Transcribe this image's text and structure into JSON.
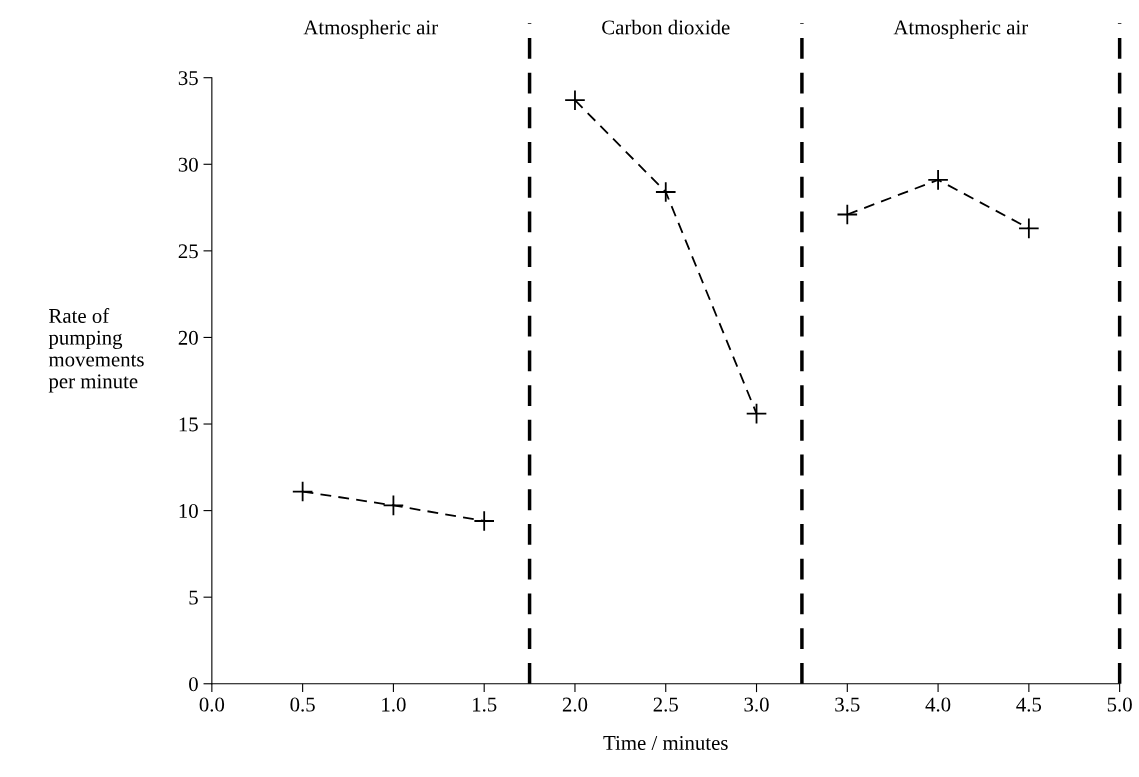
{
  "chart_data": {
    "type": "line",
    "xlabel": "Time / minutes",
    "ylabel": "Rate of\npumping\nmovements\nper minute",
    "series": [
      {
        "x": [
          0.5,
          1.0,
          1.5
        ],
        "values": [
          11.1,
          10.3,
          9.4
        ],
        "color": "#000000"
      },
      {
        "x": [
          2.0,
          2.5,
          3.0
        ],
        "values": [
          33.7,
          28.4,
          15.6
        ],
        "color": "#000000"
      },
      {
        "x": [
          3.5,
          4.0,
          4.5
        ],
        "values": [
          27.1,
          29.1,
          26.3
        ],
        "color": "#000000"
      }
    ],
    "xlim": [
      0,
      5
    ],
    "xticks": [
      {
        "value": 0,
        "label": "0.0"
      },
      {
        "value": 0.5,
        "label": "0.5"
      },
      {
        "value": 1,
        "label": "1.0"
      },
      {
        "value": 1.5,
        "label": "1.5"
      },
      {
        "value": 2,
        "label": "2.0"
      },
      {
        "value": 2.5,
        "label": "2.5"
      },
      {
        "value": 3,
        "label": "3.0"
      },
      {
        "value": 3.5,
        "label": "3.5"
      },
      {
        "value": 4,
        "label": "4.0"
      },
      {
        "value": 4.5,
        "label": "4.5"
      },
      {
        "value": 5,
        "label": "5.0"
      }
    ],
    "ylim": [
      0,
      35
    ],
    "yticks": [
      0,
      5,
      10,
      15,
      20,
      25,
      30,
      35
    ],
    "ref_lines": [
      {
        "axis": "x",
        "value": 1.75,
        "line_style": "dashed",
        "color": "#000000"
      },
      {
        "axis": "x",
        "value": 3.25,
        "line_style": "dashed",
        "color": "#000000"
      },
      {
        "axis": "x",
        "value": 5,
        "line_style": "dashed",
        "color": "#000000"
      }
    ],
    "annotations": [
      "Atmospheric air",
      "Carbon dioxide",
      "Atmospheric air"
    ],
    "marker": "cross",
    "line_style": "dashed",
    "grid": false,
    "legend": false
  }
}
